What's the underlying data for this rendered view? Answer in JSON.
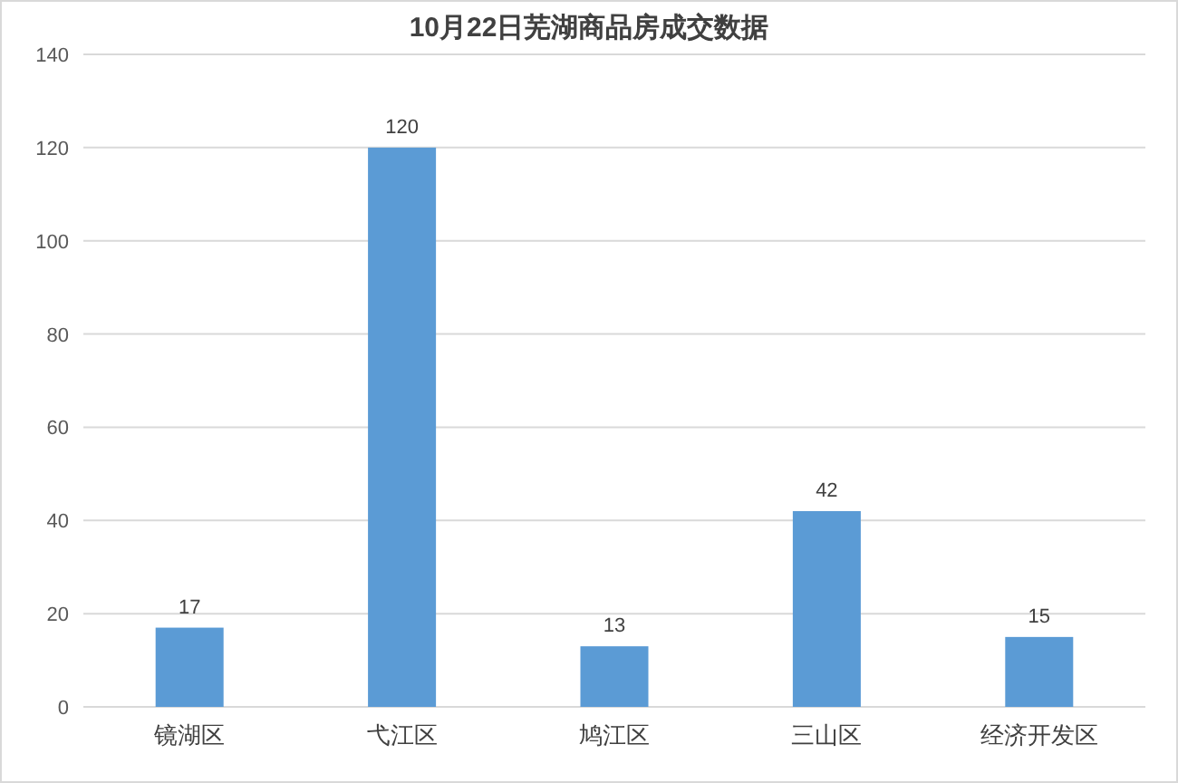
{
  "chart_data": {
    "type": "bar",
    "title": "10月22日芜湖商品房成交数据",
    "categories": [
      "镜湖区",
      "弋江区",
      "鸠江区",
      "三山区",
      "经济开发区"
    ],
    "values": [
      17,
      120,
      13,
      42,
      15
    ],
    "color": "#5b9bd5",
    "ylim": [
      0,
      140
    ],
    "yticks": [
      0,
      20,
      40,
      60,
      80,
      100,
      120,
      140
    ],
    "grid": "y",
    "data_labels": true
  }
}
